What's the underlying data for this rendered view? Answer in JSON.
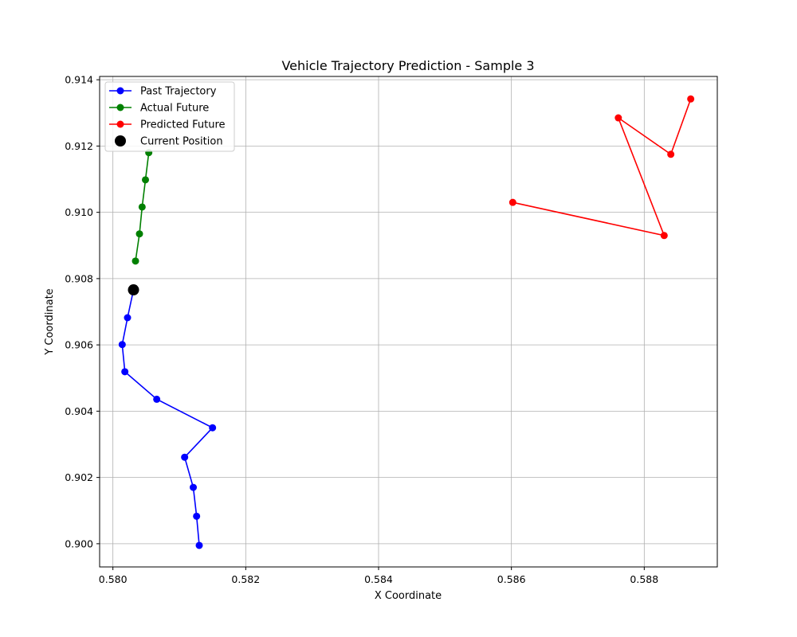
{
  "chart_data": {
    "type": "line",
    "title": "Vehicle Trajectory Prediction - Sample 3",
    "xlabel": "X Coordinate",
    "ylabel": "Y Coordinate",
    "xlim": [
      0.5798,
      0.5891
    ],
    "ylim": [
      0.8993,
      0.9141
    ],
    "x_ticks": [
      0.58,
      0.582,
      0.584,
      0.586,
      0.588
    ],
    "y_ticks": [
      0.9,
      0.902,
      0.904,
      0.906,
      0.908,
      0.91,
      0.912,
      0.914
    ],
    "x_tick_labels": [
      "0.580",
      "0.582",
      "0.584",
      "0.586",
      "0.588"
    ],
    "y_tick_labels": [
      "0.900",
      "0.902",
      "0.904",
      "0.906",
      "0.908",
      "0.910",
      "0.912",
      "0.914"
    ],
    "grid": true,
    "legend_position": "top-left",
    "series": [
      {
        "name": "Past Trajectory",
        "color": "#0000ff",
        "marker": "circle",
        "x": [
          0.5813,
          0.58126,
          0.58121,
          0.58108,
          0.5815,
          0.58066,
          0.58018,
          0.58014,
          0.58022,
          0.58031
        ],
        "y": [
          0.89995,
          0.90083,
          0.9017,
          0.90261,
          0.9035,
          0.90436,
          0.90519,
          0.90601,
          0.90682,
          0.90766
        ]
      },
      {
        "name": "Actual Future",
        "color": "#008000",
        "marker": "circle",
        "x": [
          0.58034,
          0.5804,
          0.58044,
          0.58049,
          0.58054
        ],
        "y": [
          0.90853,
          0.90935,
          0.91016,
          0.91098,
          0.9118
        ]
      },
      {
        "name": "Predicted Future",
        "color": "#ff0000",
        "marker": "circle",
        "x": [
          0.58602,
          0.5883,
          0.58761,
          0.5884,
          0.5887
        ],
        "y": [
          0.9103,
          0.9093,
          0.91285,
          0.91175,
          0.91342
        ]
      },
      {
        "name": "Current Position",
        "color": "#000000",
        "marker": "large-circle",
        "x": [
          0.58031
        ],
        "y": [
          0.90766
        ]
      }
    ]
  }
}
